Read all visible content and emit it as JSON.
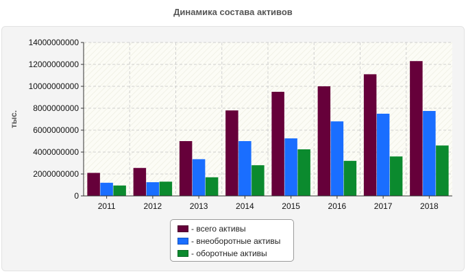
{
  "chart_data": {
    "type": "bar",
    "title": "Динамика состава активов",
    "ylabel": "тыс.",
    "xlabel": "",
    "ylim": [
      0,
      14000000000
    ],
    "yticks": [
      0,
      2000000000,
      4000000000,
      6000000000,
      8000000000,
      10000000000,
      12000000000,
      14000000000
    ],
    "categories": [
      "2011",
      "2012",
      "2013",
      "2014",
      "2015",
      "2016",
      "2017",
      "2018"
    ],
    "series": [
      {
        "name": "всего активы",
        "legend_label": "- всего активы",
        "color": "#66003a",
        "values": [
          2100000000,
          2550000000,
          5000000000,
          7800000000,
          9500000000,
          10000000000,
          11100000000,
          12300000000
        ]
      },
      {
        "name": "внеоборотные активы",
        "legend_label": "- внеоборотные активы",
        "color": "#1a6eff",
        "values": [
          1200000000,
          1250000000,
          3350000000,
          5000000000,
          5250000000,
          6800000000,
          7500000000,
          7750000000
        ]
      },
      {
        "name": "оборотные активы",
        "legend_label": "- оборотные активы",
        "color": "#0b8a2e",
        "values": [
          950000000,
          1300000000,
          1700000000,
          2800000000,
          4250000000,
          3200000000,
          3600000000,
          4600000000
        ]
      }
    ],
    "grid": true,
    "legend_position": "bottom-center"
  }
}
